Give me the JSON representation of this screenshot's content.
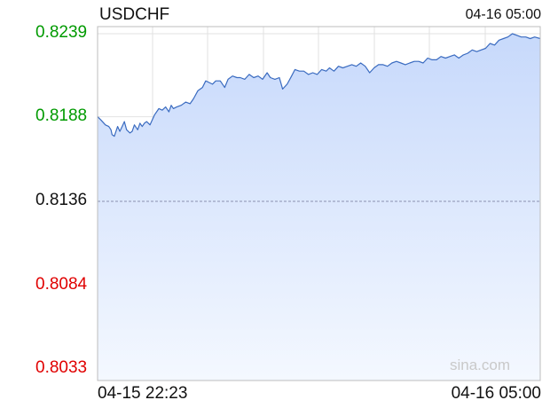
{
  "header": {
    "symbol": "USDCHF",
    "timestamp": "04-16 05:00"
  },
  "watermark": "sina.com",
  "colors": {
    "line": "#3a6bc0",
    "fill_top": "#c7d9fb",
    "fill_bottom": "#f4f8ff",
    "grid": "#e2e2e2",
    "up": "#009a00",
    "down": "#e00000",
    "flat": "#111111"
  },
  "chart_data": {
    "type": "area",
    "title": "USDCHF",
    "y_ticks": [
      {
        "label": "0.8239",
        "value": 0.8239,
        "trend": "up"
      },
      {
        "label": "0.8188",
        "value": 0.8188,
        "trend": "up"
      },
      {
        "label": "0.8136",
        "value": 0.8136,
        "trend": "flat"
      },
      {
        "label": "0.8084",
        "value": 0.8084,
        "trend": "down"
      },
      {
        "label": "0.8033",
        "value": 0.8033,
        "trend": "down"
      }
    ],
    "ylim": [
      0.8033,
      0.8239
    ],
    "reference_value": 0.8136,
    "x_labels": [
      "04-15 22:23",
      "04-16 05:00"
    ],
    "xlim": [
      0,
      397
    ],
    "grid": true,
    "series": [
      {
        "x": [
          0,
          3,
          7,
          10,
          12,
          13,
          15,
          18,
          20,
          22,
          24,
          26,
          29,
          31,
          33,
          36,
          38,
          40,
          42,
          44,
          47,
          51,
          55,
          58,
          61,
          64,
          66,
          68,
          71,
          75,
          79,
          83,
          86,
          90,
          94,
          97,
          100,
          103,
          106,
          110,
          114,
          117,
          121,
          125,
          128,
          132,
          136,
          140,
          144,
          148,
          152,
          155,
          159,
          163,
          166,
          170,
          174,
          177,
          181,
          185,
          189,
          193,
          197,
          201,
          205,
          208,
          212,
          216,
          220,
          224,
          228,
          232,
          236,
          240,
          244,
          248,
          252,
          256,
          260,
          264,
          268,
          272,
          276,
          280,
          284,
          288,
          292,
          296,
          300,
          304,
          308,
          312,
          316,
          320,
          324,
          328,
          332,
          336,
          340,
          344,
          348,
          352,
          356,
          360,
          364,
          368,
          372,
          376,
          380,
          384,
          388,
          392,
          397
        ],
        "y": [
          0.8188,
          0.8186,
          0.8183,
          0.8182,
          0.818,
          0.8177,
          0.8176,
          0.8182,
          0.8179,
          0.8182,
          0.8185,
          0.818,
          0.8178,
          0.8179,
          0.8183,
          0.818,
          0.8184,
          0.8182,
          0.8184,
          0.8185,
          0.8183,
          0.8189,
          0.8193,
          0.8192,
          0.8194,
          0.8191,
          0.8195,
          0.8193,
          0.8194,
          0.8195,
          0.8197,
          0.8196,
          0.8199,
          0.8204,
          0.8206,
          0.821,
          0.8209,
          0.8208,
          0.821,
          0.821,
          0.8206,
          0.8211,
          0.8213,
          0.8212,
          0.8212,
          0.8211,
          0.8214,
          0.8212,
          0.8213,
          0.8211,
          0.8215,
          0.8212,
          0.8211,
          0.8212,
          0.8205,
          0.8208,
          0.8213,
          0.8217,
          0.8216,
          0.8216,
          0.8214,
          0.8215,
          0.8214,
          0.8217,
          0.8216,
          0.8218,
          0.8216,
          0.8219,
          0.8218,
          0.8219,
          0.822,
          0.8219,
          0.8221,
          0.8219,
          0.8215,
          0.8218,
          0.822,
          0.822,
          0.8219,
          0.8221,
          0.8222,
          0.8221,
          0.822,
          0.8221,
          0.8222,
          0.8222,
          0.8221,
          0.8224,
          0.8223,
          0.8223,
          0.8225,
          0.8224,
          0.8225,
          0.8226,
          0.8224,
          0.8226,
          0.8227,
          0.8229,
          0.8228,
          0.8229,
          0.823,
          0.8233,
          0.8232,
          0.8235,
          0.8236,
          0.8237,
          0.8239,
          0.8238,
          0.8237,
          0.8237,
          0.8236,
          0.8237,
          0.8236
        ]
      }
    ]
  }
}
